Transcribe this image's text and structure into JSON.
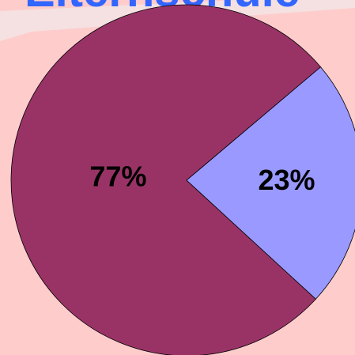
{
  "chart_data": {
    "type": "pie",
    "title": "Elternschule",
    "categories": [
      null,
      null
    ],
    "values": [
      77,
      23
    ],
    "value_labels": [
      "77%",
      "23%"
    ],
    "colors": [
      "#993366",
      "#9999ff"
    ]
  }
}
